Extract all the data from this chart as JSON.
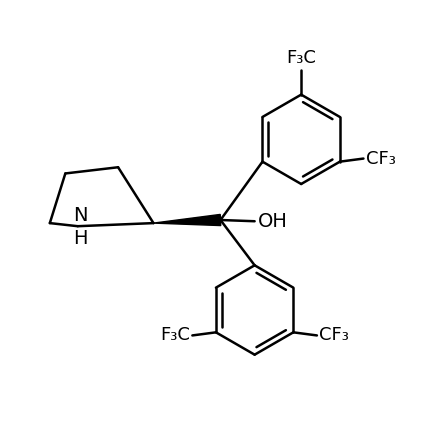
{
  "background_color": "#ffffff",
  "line_color": "#000000",
  "line_width": 1.8,
  "font_size": 14,
  "fig_width": 4.41,
  "fig_height": 4.4,
  "dpi": 100,
  "xlim": [
    -3.5,
    3.5
  ],
  "ylim": [
    -3.5,
    3.5
  ]
}
